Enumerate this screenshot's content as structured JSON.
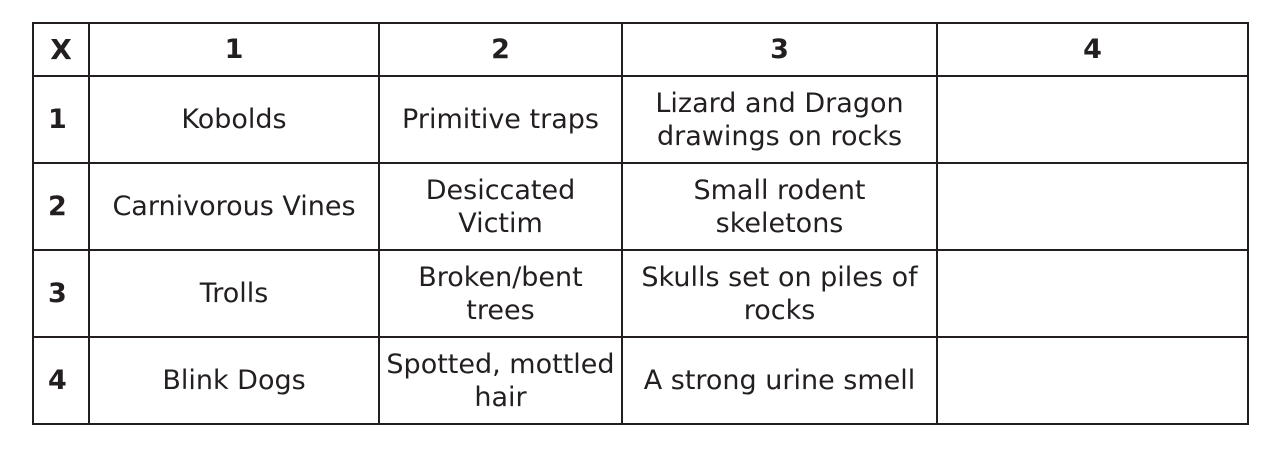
{
  "table": {
    "corner": "X",
    "columns": [
      "1",
      "2",
      "3",
      "4"
    ],
    "rows": [
      {
        "num": "1",
        "cells": [
          "Kobolds",
          "Primitive traps",
          "Lizard and Dragon drawings on rocks",
          ""
        ]
      },
      {
        "num": "2",
        "cells": [
          "Carnivorous Vines",
          "Desiccated Victim",
          "Small rodent skeletons",
          ""
        ]
      },
      {
        "num": "3",
        "cells": [
          "Trolls",
          "Broken/bent trees",
          "Skulls set on piles of rocks",
          ""
        ]
      },
      {
        "num": "4",
        "cells": [
          "Blink Dogs",
          "Spotted, mottled hair",
          "A strong urine smell",
          ""
        ]
      }
    ]
  }
}
